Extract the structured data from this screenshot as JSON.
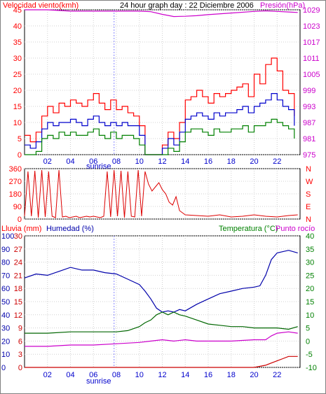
{
  "colors": {
    "wind": "#ff0000",
    "gust": "#ff0000",
    "wind_avg": "#0000cc",
    "wind_min": "#008000",
    "pressure": "#cc00cc",
    "direction": "#dd0000",
    "rain": "#cc0000",
    "humidity": "#0000aa",
    "temperature": "#006600",
    "dewpoint": "#cc00cc",
    "grid": "#d0d0d0",
    "frame": "#000000"
  },
  "chart_data": [
    {
      "type": "line",
      "title": "24 hour graph day : 22 Diciembre 2006",
      "left_label": "Velocidad viento(kmh)",
      "right_label": "Presión(hPa)",
      "x_ticks": [
        "02",
        "04",
        "06",
        "08",
        "10",
        "12",
        "14",
        "16",
        "18",
        "20",
        "22"
      ],
      "sunrise_label": "sunrise",
      "sunrise_hour": 7.8,
      "x_range": [
        0,
        24
      ],
      "y_left_ticks": [
        "0",
        "5",
        "10",
        "15",
        "20",
        "25",
        "30",
        "35",
        "40",
        "45"
      ],
      "y_left_range": [
        0,
        45
      ],
      "y_right_ticks": [
        "975",
        "981",
        "987",
        "993",
        "999",
        "1005",
        "1011",
        "1017",
        "1023",
        "1029"
      ],
      "y_right_range": [
        975,
        1029
      ],
      "grid": true,
      "series": [
        {
          "key": "pressure",
          "axis": "right",
          "x": [
            0,
            2,
            4,
            6,
            8,
            10,
            11,
            12,
            13,
            14,
            15,
            16,
            18,
            20,
            21,
            22,
            23,
            23.8
          ],
          "y": [
            1029,
            1029,
            1028.5,
            1028.5,
            1028.5,
            1028.5,
            1028.3,
            1027.3,
            1026.5,
            1026.6,
            1026.8,
            1027.2,
            1027.8,
            1028.4,
            1028.6,
            1028.4,
            1028.2,
            1028
          ]
        },
        {
          "key": "gust",
          "axis": "left",
          "x": [
            0,
            0.5,
            1,
            1.5,
            2,
            2.5,
            3,
            3.5,
            4,
            4.5,
            5,
            5.5,
            6,
            6.5,
            7,
            7.5,
            8,
            8.5,
            9,
            9.5,
            10,
            10.5,
            11,
            11.5,
            12,
            12.5,
            13,
            13.5,
            14,
            14.5,
            15,
            15.5,
            16,
            16.5,
            17,
            17.5,
            18,
            18.5,
            19,
            19.5,
            20,
            20.5,
            21,
            21.5,
            22,
            22.5,
            23,
            23.5
          ],
          "y": [
            6,
            4,
            7,
            12,
            15,
            13,
            16,
            15,
            17,
            16,
            15,
            17,
            19,
            16,
            14,
            17,
            14,
            15,
            13,
            12,
            9,
            0,
            0,
            0,
            3,
            7,
            5,
            10,
            17,
            18,
            20,
            18,
            16,
            19,
            18,
            19,
            20,
            21,
            22,
            18,
            25,
            22,
            28,
            30,
            26,
            20,
            19,
            12
          ]
        },
        {
          "key": "wind_avg",
          "axis": "left",
          "x": [
            0,
            0.5,
            1,
            1.5,
            2,
            2.5,
            3,
            3.5,
            4,
            4.5,
            5,
            5.5,
            6,
            6.5,
            7,
            7.5,
            8,
            8.5,
            9,
            9.5,
            10,
            10.5,
            11,
            11.5,
            12,
            12.5,
            13,
            13.5,
            14,
            14.5,
            15,
            15.5,
            16,
            16.5,
            17,
            17.5,
            18,
            18.5,
            19,
            19.5,
            20,
            20.5,
            21,
            21.5,
            22,
            22.5,
            23,
            23.5
          ],
          "y": [
            3,
            2,
            4,
            8,
            10,
            9,
            10,
            10,
            11,
            10,
            9,
            11,
            12,
            10,
            9,
            10,
            9,
            10,
            9,
            9,
            6,
            0,
            0,
            0,
            2,
            5,
            3,
            7,
            11,
            12,
            13,
            12,
            11,
            13,
            12,
            13,
            13,
            14,
            15,
            13,
            15,
            16,
            17,
            19,
            17,
            15,
            14,
            9
          ]
        },
        {
          "key": "wind_min",
          "axis": "left",
          "x": [
            0,
            0.5,
            1,
            1.5,
            2,
            2.5,
            3,
            3.5,
            4,
            4.5,
            5,
            5.5,
            6,
            6.5,
            7,
            7.5,
            8,
            8.5,
            9,
            9.5,
            10,
            10.5,
            11,
            11.5,
            12,
            12.5,
            13,
            13.5,
            14,
            14.5,
            15,
            15.5,
            16,
            16.5,
            17,
            17.5,
            18,
            18.5,
            19,
            19.5,
            20,
            20.5,
            21,
            21.5,
            22,
            22.5,
            23,
            23.5
          ],
          "y": [
            0,
            0,
            1,
            5,
            6,
            5,
            7,
            6,
            7,
            6,
            6,
            7,
            8,
            6,
            5,
            7,
            5,
            6,
            6,
            5,
            3,
            0,
            0,
            0,
            0,
            2,
            1,
            4,
            7,
            8,
            8,
            7,
            6,
            8,
            7,
            7,
            8,
            8,
            9,
            7,
            9,
            9,
            10,
            11,
            10,
            9,
            8,
            5
          ]
        }
      ]
    },
    {
      "type": "scatter",
      "left_label_ticks": [
        "0",
        "90",
        "180",
        "270",
        "360"
      ],
      "y_left_range": [
        0,
        360
      ],
      "right_letters": [
        "N",
        "W",
        "S",
        "E",
        "N"
      ],
      "x_range": [
        0,
        24
      ],
      "grid": true,
      "series": [
        {
          "key": "direction",
          "x": [
            0,
            0.3,
            0.6,
            0.9,
            1.2,
            1.5,
            1.8,
            2.1,
            2.4,
            2.7,
            3,
            3.3,
            3.6,
            3.9,
            4.2,
            4.5,
            4.8,
            5.1,
            5.4,
            5.7,
            6,
            6.3,
            6.6,
            6.9,
            7.2,
            7.5,
            7.8,
            8.1,
            8.4,
            8.7,
            9,
            9.3,
            9.6,
            9.9,
            10.2,
            10.5,
            10.8,
            11.1,
            11.4,
            11.7,
            12,
            12.3,
            12.6,
            12.9,
            13.2,
            13.5,
            14,
            15,
            16,
            17,
            18,
            19,
            20,
            21,
            22,
            23,
            23.8
          ],
          "y": [
            20,
            340,
            20,
            345,
            10,
            350,
            15,
            340,
            20,
            10,
            350,
            15,
            20,
            10,
            15,
            20,
            10,
            15,
            20,
            15,
            20,
            15,
            10,
            20,
            340,
            15,
            350,
            20,
            345,
            10,
            340,
            20,
            15,
            350,
            20,
            340,
            250,
            200,
            230,
            260,
            210,
            180,
            120,
            100,
            160,
            60,
            30,
            25,
            20,
            30,
            15,
            20,
            30,
            20,
            15,
            25,
            30
          ]
        }
      ]
    },
    {
      "type": "line",
      "left_label_rain": "Lluvia (mm)",
      "left_label_humidity": "Humedad (%)",
      "right_label_temp": "Temperatura (°C)",
      "right_label_dew": "Punto rocío",
      "x_ticks": [
        "02",
        "04",
        "06",
        "08",
        "10",
        "12",
        "14",
        "16",
        "18",
        "20",
        "22"
      ],
      "sunrise_label": "sunrise",
      "sunrise_hour": 7.8,
      "x_range": [
        0,
        24
      ],
      "y_humidity_ticks": [
        "0",
        "10",
        "20",
        "30",
        "40",
        "50",
        "60",
        "70",
        "80",
        "90",
        "100"
      ],
      "y_humidity_range": [
        0,
        100
      ],
      "y_rain_ticks": [
        "0",
        "3",
        "6",
        "9",
        "12",
        "15",
        "18",
        "21",
        "24",
        "27",
        "30"
      ],
      "y_rain_range": [
        0,
        30
      ],
      "y_temp_ticks": [
        "-10",
        "-5",
        "0",
        "5",
        "10",
        "15",
        "20",
        "25",
        "30",
        "35",
        "40"
      ],
      "y_temp_range": [
        -10,
        40
      ],
      "grid": true,
      "series": [
        {
          "key": "humidity",
          "axis": "humidity",
          "x": [
            0,
            1,
            2,
            3,
            4,
            5,
            6,
            7,
            8,
            9,
            10,
            10.5,
            11,
            11.5,
            12,
            12.5,
            13,
            13.5,
            14,
            15,
            16,
            17,
            18,
            19,
            20,
            20.5,
            21,
            21.5,
            22,
            23,
            23.8
          ],
          "y": [
            68,
            71,
            70,
            73,
            76,
            74,
            74,
            72,
            71,
            67,
            63,
            58,
            52,
            45,
            42,
            43,
            42,
            44,
            43,
            48,
            52,
            56,
            58,
            60,
            61,
            62,
            70,
            82,
            87,
            89,
            87
          ]
        },
        {
          "key": "temperature",
          "axis": "temp",
          "x": [
            0,
            2,
            4,
            6,
            8,
            9,
            10,
            10.5,
            11,
            11.5,
            12,
            12.5,
            13,
            13.5,
            14,
            15,
            16,
            17,
            18,
            19,
            20,
            21,
            22,
            23,
            23.8
          ],
          "y": [
            3,
            3,
            3.5,
            3.5,
            3.5,
            4,
            5.5,
            7,
            8,
            10,
            11,
            10,
            11,
            10,
            9.5,
            8,
            6.5,
            6,
            5.5,
            5.5,
            5,
            5,
            5,
            4.5,
            5.5
          ]
        },
        {
          "key": "dewpoint",
          "axis": "temp",
          "x": [
            0,
            2,
            4,
            6,
            8,
            10,
            11,
            12,
            13,
            14,
            15,
            16,
            18,
            20,
            21,
            21.5,
            22,
            23,
            23.8
          ],
          "y": [
            -2,
            -2,
            -1.5,
            -1.5,
            -1,
            -0.5,
            0,
            0.5,
            0,
            0.5,
            0,
            0,
            0,
            0.5,
            0.5,
            2,
            3,
            3.5,
            3
          ]
        },
        {
          "key": "rain",
          "axis": "rain",
          "x": [
            0,
            20,
            21,
            21.5,
            22,
            22.5,
            23,
            23.8
          ],
          "y": [
            0,
            0,
            0.5,
            1,
            1.5,
            2,
            2.5,
            2.5
          ]
        }
      ]
    }
  ]
}
